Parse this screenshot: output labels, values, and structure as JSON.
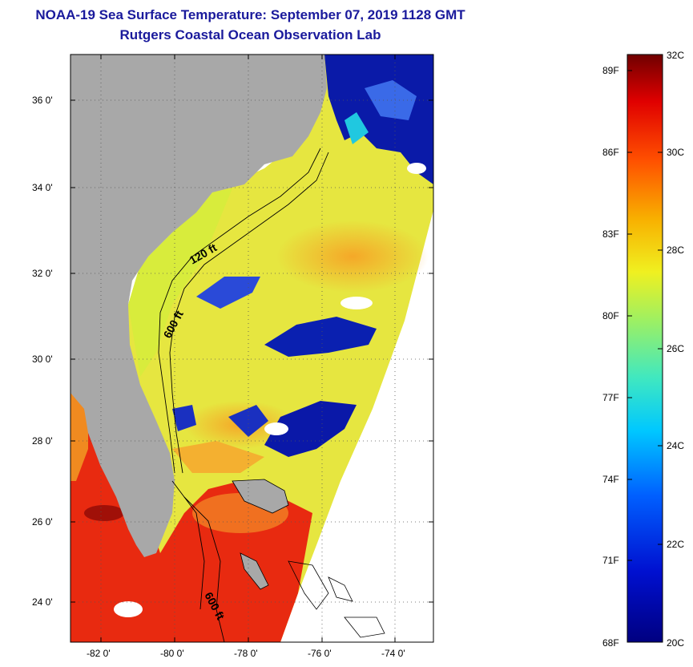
{
  "title": {
    "line1": "NOAA-19 Sea Surface Temperature:  September 07, 2019 1128 GMT",
    "line2": "Rutgers Coastal Ocean Observation Lab"
  },
  "map": {
    "lat_labels": [
      "36 0'",
      "34 0'",
      "32 0'",
      "30 0'",
      "28 0'",
      "26 0'",
      "24 0'"
    ],
    "lon_labels": [
      "-82 0'",
      "-80 0'",
      "-78 0'",
      "-76 0'",
      "-74 0'"
    ],
    "contour_labels": [
      "120 ft",
      "600 ft",
      "600 ft"
    ],
    "colors": {
      "land": "#a8a8a8",
      "cloud_blue": "#0a1aa0",
      "warm_yellow": "#e8e83a",
      "orange": "#f4a020",
      "red": "#e02010"
    }
  },
  "colorbar": {
    "fahrenheit_labels": [
      "89F",
      "86F",
      "83F",
      "80F",
      "77F",
      "74F",
      "71F",
      "68F"
    ],
    "celsius_labels": [
      "32C",
      "30C",
      "28C",
      "26C",
      "24C",
      "22C",
      "20C"
    ],
    "range_c": [
      20,
      32
    ],
    "range_f": [
      68,
      89
    ]
  }
}
